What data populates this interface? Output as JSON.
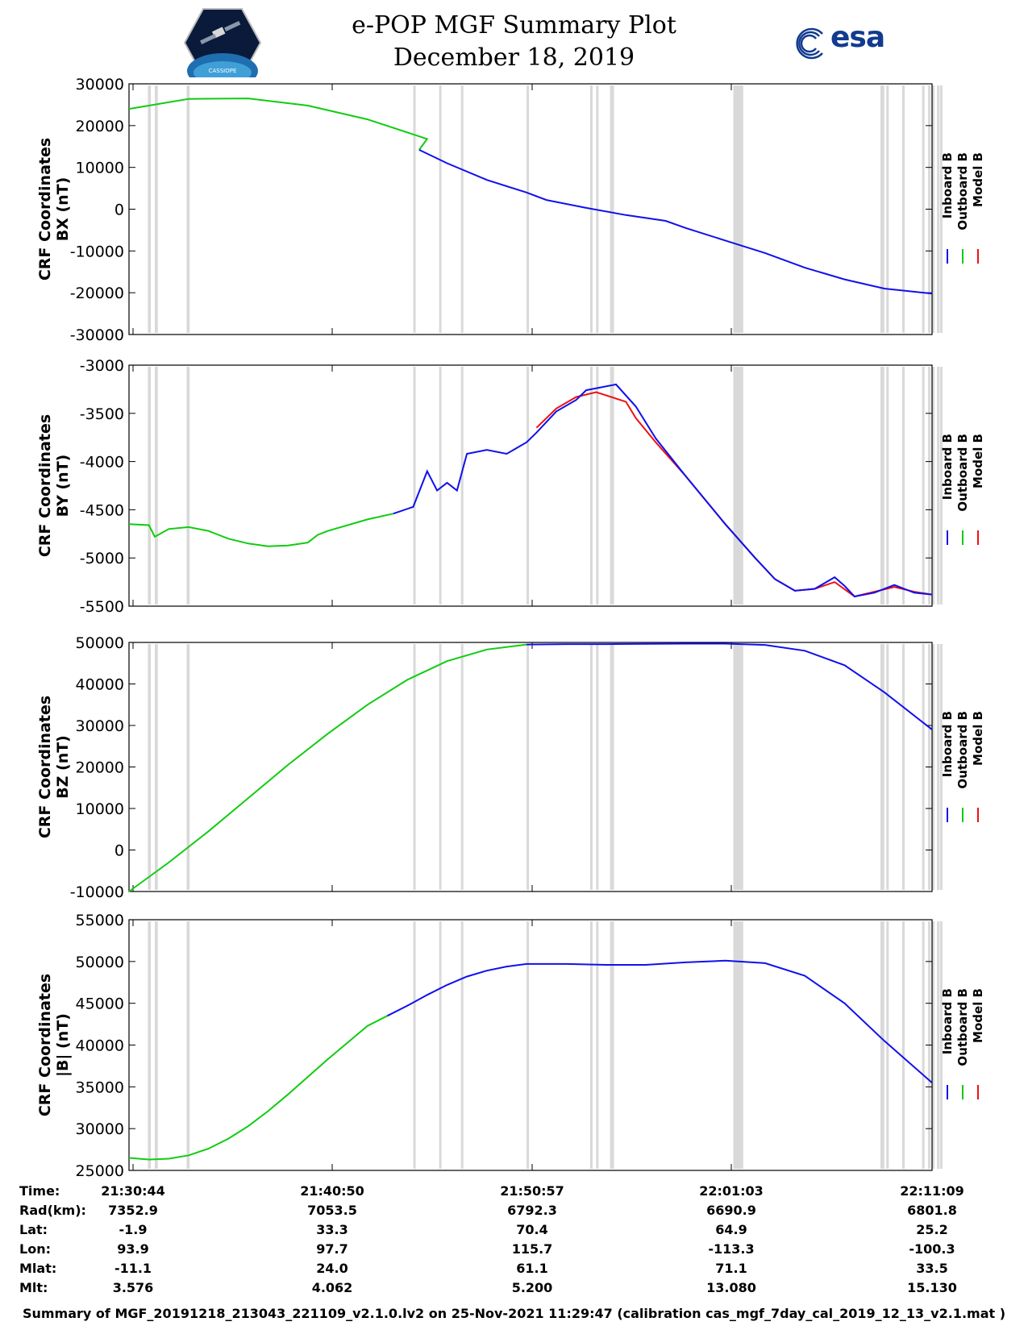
{
  "header": {
    "title": "e-POP MGF Summary Plot",
    "date": "December 18, 2019",
    "esa_logo_text": "esa",
    "logo_caption": "CASSIOPE"
  },
  "colors": {
    "inboard": "#1010ee",
    "outboard": "#10cc10",
    "model": "#ee1010",
    "gap_shade": "#d9d9d9"
  },
  "legend": [
    "Inboard B",
    "Outboard B",
    "Model B"
  ],
  "chart_data": [
    {
      "type": "line",
      "panel": "BX",
      "ylabel_line1": "CRF Coordinates",
      "ylabel_line2": "BX (nT)",
      "ylim": [
        -30000,
        30000
      ],
      "yticks": [
        "30000",
        "20000",
        "10000",
        "0",
        "-10000",
        "-20000",
        "-30000"
      ],
      "x": [
        0,
        3,
        6,
        9,
        12,
        15,
        18,
        21,
        24,
        27,
        30,
        33,
        36,
        39,
        40.4
      ],
      "series": [
        {
          "name": "Outboard B",
          "x": [
            0,
            3,
            6,
            9,
            12,
            15,
            14.6
          ],
          "values": [
            24000,
            26400,
            26500,
            24800,
            21500,
            16800,
            14200
          ]
        },
        {
          "name": "Inboard B",
          "x": [
            14.6,
            16,
            18,
            20,
            21,
            23,
            25,
            27,
            28,
            30,
            32,
            34,
            36,
            38,
            40.4
          ],
          "values": [
            14200,
            11000,
            7000,
            4000,
            2200,
            300,
            -1400,
            -2800,
            -4500,
            -7500,
            -10500,
            -14000,
            -16800,
            -19000,
            -20200
          ]
        }
      ]
    },
    {
      "type": "line",
      "panel": "BY",
      "ylabel_line1": "CRF Coordinates",
      "ylabel_line2": "BY (nT)",
      "ylim": [
        -5500,
        -3000
      ],
      "yticks": [
        "-3000",
        "-3500",
        "-4000",
        "-4500",
        "-5000",
        "-5500"
      ],
      "series": [
        {
          "name": "Outboard B",
          "x": [
            0,
            1,
            1.3,
            2,
            3,
            4,
            4.5,
            5,
            6,
            7,
            8,
            9,
            9.5,
            10,
            12,
            13.3
          ],
          "values": [
            -4650,
            -4660,
            -4780,
            -4700,
            -4680,
            -4720,
            -4760,
            -4800,
            -4850,
            -4880,
            -4870,
            -4840,
            -4760,
            -4720,
            -4600,
            -4540
          ]
        },
        {
          "name": "Model B",
          "x": [
            20.5,
            21.5,
            22.5,
            23.5,
            25,
            25.5,
            26.5,
            28,
            30,
            31.5,
            32.5,
            33.5,
            34.5,
            35.5,
            36.5,
            37.5,
            38.5,
            39.5,
            40.4
          ],
          "values": [
            -3650,
            -3450,
            -3330,
            -3280,
            -3380,
            -3550,
            -3800,
            -4150,
            -4650,
            -5000,
            -5220,
            -5340,
            -5320,
            -5250,
            -5400,
            -5350,
            -5300,
            -5350,
            -5380
          ]
        },
        {
          "name": "Inboard B",
          "x": [
            13.3,
            14.3,
            15,
            15.5,
            16,
            16.5,
            17,
            18,
            19,
            20,
            20.5,
            21.5,
            22.5,
            23,
            24.5,
            25.5,
            26.5,
            28,
            30,
            31.5,
            32.5,
            33.5,
            34.5,
            35.5,
            36,
            36.5,
            37.5,
            38.5,
            39.5,
            40.4
          ],
          "values": [
            -4540,
            -4470,
            -4100,
            -4300,
            -4220,
            -4300,
            -3920,
            -3880,
            -3920,
            -3800,
            -3700,
            -3480,
            -3360,
            -3260,
            -3200,
            -3430,
            -3760,
            -4150,
            -4650,
            -5000,
            -5220,
            -5340,
            -5320,
            -5200,
            -5290,
            -5400,
            -5360,
            -5280,
            -5360,
            -5380
          ]
        }
      ]
    },
    {
      "type": "line",
      "panel": "BZ",
      "ylabel_line1": "CRF Coordinates",
      "ylabel_line2": "BZ (nT)",
      "ylim": [
        -10000,
        50000
      ],
      "yticks": [
        "50000",
        "40000",
        "30000",
        "20000",
        "10000",
        "0",
        "-10000"
      ],
      "series": [
        {
          "name": "Outboard B",
          "x": [
            0,
            2,
            4,
            6,
            8,
            10,
            12,
            14,
            16,
            18,
            20
          ],
          "values": [
            -10000,
            -3000,
            4500,
            12500,
            20500,
            28000,
            35000,
            41000,
            45500,
            48300,
            49500
          ]
        },
        {
          "name": "Inboard B",
          "x": [
            20,
            22,
            24,
            26,
            28,
            30,
            32,
            34,
            36,
            38,
            40.4
          ],
          "values": [
            49500,
            49600,
            49600,
            49650,
            49700,
            49700,
            49400,
            48000,
            44500,
            38000,
            29000
          ]
        }
      ]
    },
    {
      "type": "line",
      "panel": "|B|",
      "ylabel_line1": "CRF Coordinates",
      "ylabel_line2": "|B| (nT)",
      "ylim": [
        25000,
        55000
      ],
      "yticks": [
        "55000",
        "50000",
        "45000",
        "40000",
        "35000",
        "30000",
        "25000"
      ],
      "series": [
        {
          "name": "Outboard B",
          "x": [
            0,
            1,
            2,
            3,
            4,
            5,
            6,
            7,
            8,
            9,
            10,
            11,
            12,
            13
          ],
          "values": [
            26500,
            26300,
            26400,
            26800,
            27600,
            28800,
            30300,
            32100,
            34100,
            36200,
            38300,
            40300,
            42300,
            43500
          ]
        },
        {
          "name": "Inboard B",
          "x": [
            13,
            14,
            15,
            16,
            17,
            18,
            19,
            20,
            22,
            24,
            26,
            28,
            30,
            32,
            34,
            36,
            38,
            40.4
          ],
          "values": [
            43500,
            44700,
            46000,
            47200,
            48200,
            48900,
            49400,
            49700,
            49700,
            49600,
            49600,
            49900,
            50100,
            49800,
            48300,
            45000,
            40500,
            35500
          ]
        }
      ]
    }
  ],
  "gap_bands": [
    [
      0.95,
      1.1
    ],
    [
      1.3,
      1.45
    ],
    [
      2.9,
      3.05
    ],
    [
      14.3,
      14.4
    ],
    [
      15.6,
      15.7
    ],
    [
      16.7,
      16.8
    ],
    [
      20.0,
      20.1
    ],
    [
      23.2,
      23.3
    ],
    [
      23.5,
      23.6
    ],
    [
      24.2,
      24.4
    ],
    [
      30.4,
      30.9
    ],
    [
      37.8,
      38.0
    ],
    [
      38.1,
      38.2
    ],
    [
      38.9,
      39.0
    ],
    [
      39.9,
      40.0
    ],
    [
      40.2,
      40.3
    ],
    [
      40.4,
      40.5
    ],
    [
      40.65,
      40.75
    ],
    [
      40.8,
      40.9
    ]
  ],
  "xticks": [
    "21:30:44",
    "21:40:50",
    "21:50:57",
    "22:01:03",
    "22:11:09"
  ],
  "table": {
    "row_labels": [
      "Time:",
      "Rad(km):",
      "Lat:",
      "Lon:",
      "Mlat:",
      "Mlt:"
    ],
    "columns": [
      [
        "21:30:44",
        "7352.9",
        "-1.9",
        "93.9",
        "-11.1",
        "3.576"
      ],
      [
        "21:40:50",
        "7053.5",
        "33.3",
        "97.7",
        "24.0",
        "4.062"
      ],
      [
        "21:50:57",
        "6792.3",
        "70.4",
        "115.7",
        "61.1",
        "5.200"
      ],
      [
        "22:01:03",
        "6690.9",
        "64.9",
        "-113.3",
        "71.1",
        "13.080"
      ],
      [
        "22:11:09",
        "6801.8",
        "25.2",
        "-100.3",
        "33.5",
        "15.130"
      ]
    ]
  },
  "footer": "Summary of MGF_20191218_213043_221109_v2.1.0.lv2 on 25-Nov-2021 11:29:47 (calibration cas_mgf_7day_cal_2019_12_13_v2.1.mat )"
}
